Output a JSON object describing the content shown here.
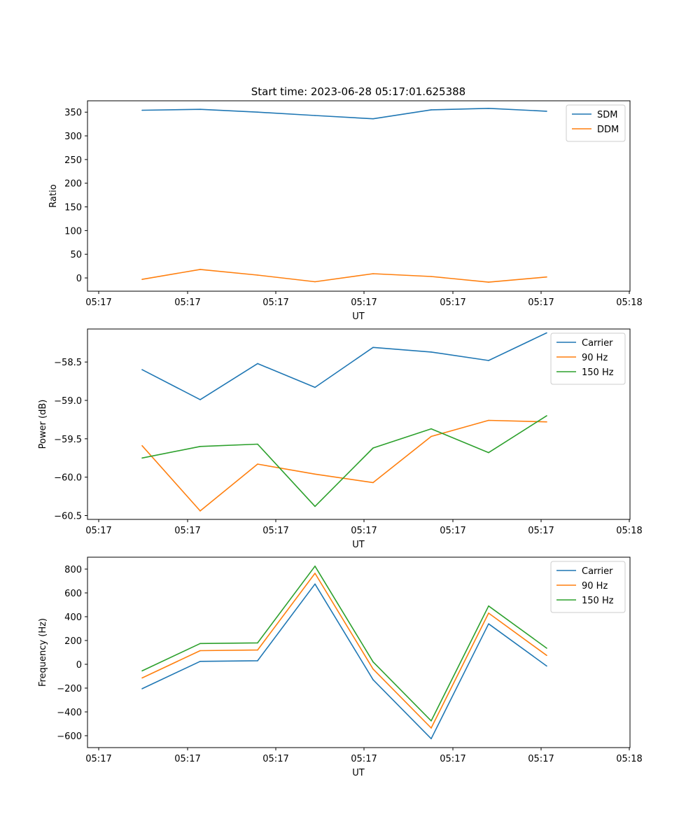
{
  "figure_title": "Start time: 2023-06-28 05:17:01.625388",
  "x_tick_labels": [
    "05:17",
    "05:17",
    "05:17",
    "05:17",
    "05:17",
    "05:17",
    "05:18"
  ],
  "chart_data": [
    {
      "type": "line",
      "title": "Start time: 2023-06-28 05:17:01.625388",
      "xlabel": "UT",
      "ylabel": "Ratio",
      "ylim": [
        -28,
        374
      ],
      "yticks": [
        0,
        50,
        100,
        150,
        200,
        250,
        300,
        350
      ],
      "legend": "top-right",
      "grid": false,
      "series": [
        {
          "name": "SDM",
          "color": "#1f77b4",
          "values": [
            354,
            356,
            350,
            343,
            336,
            355,
            358,
            352
          ]
        },
        {
          "name": "DDM",
          "color": "#ff7f0e",
          "values": [
            -3,
            18,
            6,
            -8,
            9,
            3,
            -9,
            2
          ]
        }
      ]
    },
    {
      "type": "line",
      "xlabel": "UT",
      "ylabel": "Power (dB)",
      "ylim": [
        -60.55,
        -58.07
      ],
      "yticks": [
        -60.5,
        -60.0,
        -59.5,
        -59.0,
        -58.5
      ],
      "ytick_labels": [
        "−60.5",
        "−60.0",
        "−59.5",
        "−59.0",
        "−58.5"
      ],
      "legend": "top-right",
      "grid": false,
      "series": [
        {
          "name": "Carrier",
          "color": "#1f77b4",
          "values": [
            -58.6,
            -58.99,
            -58.52,
            -58.83,
            -58.31,
            -58.37,
            -58.48,
            -58.12
          ]
        },
        {
          "name": "90 Hz",
          "color": "#ff7f0e",
          "values": [
            -59.59,
            -60.44,
            -59.83,
            -59.96,
            -60.07,
            -59.47,
            -59.26,
            -59.28
          ]
        },
        {
          "name": "150 Hz",
          "color": "#2ca02c",
          "values": [
            -59.75,
            -59.6,
            -59.57,
            -60.38,
            -59.62,
            -59.37,
            -59.68,
            -59.2
          ]
        }
      ]
    },
    {
      "type": "line",
      "xlabel": "UT",
      "ylabel": "Frequency (Hz)",
      "ylim": [
        -700,
        900
      ],
      "yticks": [
        -600,
        -400,
        -200,
        0,
        200,
        400,
        600,
        800
      ],
      "ytick_labels": [
        "−600",
        "−400",
        "−200",
        "0",
        "200",
        "400",
        "600",
        "800"
      ],
      "legend": "top-right",
      "grid": false,
      "series": [
        {
          "name": "Carrier",
          "color": "#1f77b4",
          "values": [
            -205,
            25,
            30,
            675,
            -130,
            -625,
            340,
            -15
          ]
        },
        {
          "name": "90 Hz",
          "color": "#ff7f0e",
          "values": [
            -115,
            115,
            120,
            765,
            -40,
            -535,
            430,
            75
          ]
        },
        {
          "name": "150 Hz",
          "color": "#2ca02c",
          "values": [
            -55,
            175,
            180,
            825,
            20,
            -475,
            490,
            135
          ]
        }
      ]
    }
  ]
}
